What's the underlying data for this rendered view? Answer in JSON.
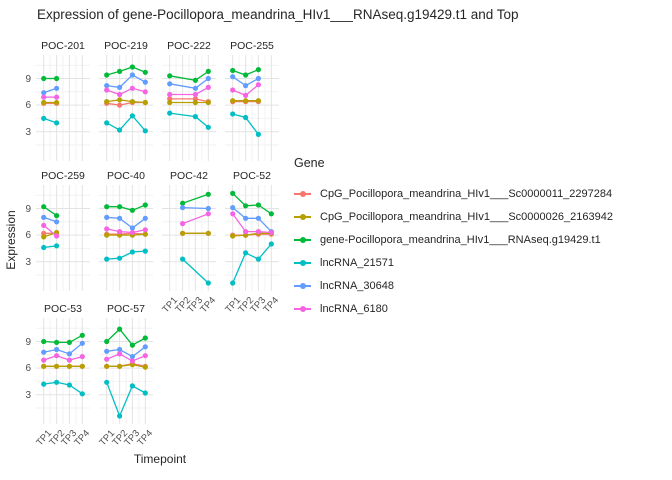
{
  "title": "Expression of gene-Pocillopora_meandrina_HIv1___RNAseq.g19429.t1 and Top",
  "chart_data": {
    "type": "line",
    "title": "Expression of gene-Pocillopora_meandrina_HIv1___RNAseq.g19429.t1 and Top",
    "xlabel": "Timepoint",
    "ylabel": "Expression",
    "legend_title": "Gene",
    "legend_position": "right",
    "grid": true,
    "x_categories": [
      "TP1",
      "TP2",
      "TP3",
      "TP4"
    ],
    "y_ticks": [
      3,
      6,
      9
    ],
    "ylim": [
      -0.3,
      11.65
    ],
    "series": [
      {
        "name": "CpG_Pocillopora_meandrina_HIv1___Sc0000011_2297284",
        "color": "#F8766D"
      },
      {
        "name": "CpG_Pocillopora_meandrina_HIv1___Sc0000026_2163942",
        "color": "#B79F00"
      },
      {
        "name": "gene-Pocillopora_meandrina_HIv1___RNAseq.g19429.t1",
        "color": "#00BA38"
      },
      {
        "name": "lncRNA_21571",
        "color": "#00BFC4"
      },
      {
        "name": "lncRNA_30648",
        "color": "#619CFF"
      },
      {
        "name": "lncRNA_6180",
        "color": "#F564E3"
      }
    ],
    "facets": [
      {
        "label": "POC-201",
        "timepoints": [
          "TP1",
          "TP2"
        ],
        "values": [
          [
            6.2,
            6.2
          ],
          [
            6.3,
            6.3
          ],
          [
            9.0,
            9.0
          ],
          [
            4.5,
            4.0
          ],
          [
            7.4,
            7.9
          ],
          [
            6.9,
            6.9
          ]
        ]
      },
      {
        "label": "POC-219",
        "timepoints": [
          "TP1",
          "TP2",
          "TP3",
          "TP4"
        ],
        "values": [
          [
            6.2,
            6.0,
            6.3,
            6.3
          ],
          [
            6.4,
            6.6,
            6.4,
            6.3
          ],
          [
            9.4,
            9.8,
            10.3,
            9.7
          ],
          [
            4.0,
            3.2,
            4.8,
            3.1
          ],
          [
            8.2,
            8.0,
            9.4,
            8.6
          ],
          [
            7.7,
            7.2,
            7.9,
            7.5
          ]
        ]
      },
      {
        "label": "POC-222",
        "timepoints": [
          "TP1",
          "TP3",
          "TP4"
        ],
        "values": [
          [
            6.7,
            6.7,
            6.4
          ],
          [
            6.3,
            6.3,
            6.3
          ],
          [
            9.3,
            8.8,
            9.8
          ],
          [
            5.1,
            4.7,
            3.5
          ],
          [
            8.4,
            7.9,
            9.0
          ],
          [
            7.2,
            7.2,
            8.0
          ]
        ]
      },
      {
        "label": "POC-255",
        "timepoints": [
          "TP1",
          "TP2",
          "TP3"
        ],
        "values": [
          [
            6.4,
            6.4,
            6.4
          ],
          [
            6.5,
            6.5,
            6.5
          ],
          [
            9.9,
            9.4,
            10.0
          ],
          [
            5.0,
            4.6,
            2.7
          ],
          [
            9.2,
            8.2,
            9.0
          ],
          [
            7.7,
            7.1,
            8.3
          ]
        ]
      },
      {
        "label": "POC-259",
        "timepoints": [
          "TP1",
          "TP2"
        ],
        "values": [
          [
            6.2,
            6.2
          ],
          [
            5.8,
            6.3
          ],
          [
            9.2,
            8.2
          ],
          [
            4.6,
            4.8
          ],
          [
            8.0,
            7.5
          ],
          [
            7.1,
            5.9
          ]
        ]
      },
      {
        "label": "POC-40",
        "timepoints": [
          "TP1",
          "TP2",
          "TP3",
          "TP4"
        ],
        "values": [
          [
            6.1,
            6.1,
            6.2,
            6.1
          ],
          [
            6.0,
            6.0,
            6.0,
            6.1
          ],
          [
            9.2,
            9.2,
            8.8,
            9.4
          ],
          [
            3.3,
            3.4,
            4.1,
            4.2
          ],
          [
            8.0,
            7.9,
            6.8,
            7.9
          ],
          [
            6.7,
            6.4,
            6.3,
            6.6
          ]
        ]
      },
      {
        "label": "POC-42",
        "timepoints": [
          "TP2",
          "TP4"
        ],
        "values": [
          [
            6.2,
            6.2
          ],
          [
            6.2,
            6.2
          ],
          [
            9.6,
            10.6
          ],
          [
            3.3,
            0.6
          ],
          [
            9.1,
            9.0
          ],
          [
            7.3,
            8.4
          ]
        ]
      },
      {
        "label": "POC-52",
        "timepoints": [
          "TP1",
          "TP2",
          "TP3",
          "TP4"
        ],
        "values": [
          [
            6.0,
            6.0,
            6.1,
            6.1
          ],
          [
            5.9,
            6.0,
            6.2,
            6.2
          ],
          [
            10.7,
            9.3,
            9.4,
            8.4
          ],
          [
            0.6,
            4.0,
            3.3,
            5.0
          ],
          [
            9.1,
            7.9,
            7.9,
            6.4
          ],
          [
            8.4,
            6.4,
            6.4,
            6.3
          ]
        ]
      },
      {
        "label": "POC-53",
        "timepoints": [
          "TP1",
          "TP2",
          "TP3",
          "TP4"
        ],
        "values": [
          [
            6.2,
            6.2,
            6.2,
            6.2
          ],
          [
            6.2,
            6.2,
            6.2,
            6.2
          ],
          [
            9.0,
            8.9,
            8.9,
            9.7
          ],
          [
            4.2,
            4.4,
            4.1,
            3.1
          ],
          [
            7.8,
            8.1,
            7.6,
            8.8
          ],
          [
            6.9,
            7.4,
            6.9,
            7.3
          ]
        ]
      },
      {
        "label": "POC-57",
        "timepoints": [
          "TP1",
          "TP2",
          "TP3",
          "TP4"
        ],
        "values": [
          [
            6.2,
            6.2,
            6.5,
            6.2
          ],
          [
            6.2,
            6.2,
            6.4,
            6.1
          ],
          [
            9.0,
            10.4,
            8.6,
            9.4
          ],
          [
            4.4,
            0.6,
            4.0,
            3.2
          ],
          [
            7.9,
            8.1,
            7.3,
            8.4
          ],
          [
            7.0,
            7.6,
            6.8,
            7.4
          ]
        ]
      }
    ],
    "style": {
      "grid_major_color": "#e3e3e3",
      "grid_minor_color": "#f2f2f2",
      "tick_text_color": "#4d4d4d",
      "text_color": "#262626"
    }
  }
}
